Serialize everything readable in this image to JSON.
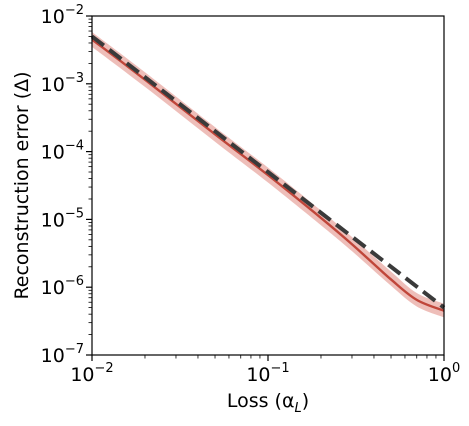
{
  "chart_data": {
    "type": "line",
    "xlabel": "Loss (αL)",
    "ylabel": "Reconstruction error (Δ)",
    "xscale": "log",
    "yscale": "log",
    "xlim": [
      0.01,
      1
    ],
    "ylim": [
      1e-07,
      0.01
    ],
    "x_ticks": [
      {
        "value": 0.01,
        "base": "10",
        "exp": "−2"
      },
      {
        "value": 0.1,
        "base": "10",
        "exp": "−1"
      },
      {
        "value": 1,
        "base": "10",
        "exp": "0"
      }
    ],
    "y_ticks": [
      {
        "value": 1e-07,
        "base": "10",
        "exp": "−7"
      },
      {
        "value": 1e-06,
        "base": "10",
        "exp": "−6"
      },
      {
        "value": 1e-05,
        "base": "10",
        "exp": "−5"
      },
      {
        "value": 0.0001,
        "base": "10",
        "exp": "−4"
      },
      {
        "value": 0.001,
        "base": "10",
        "exp": "−3"
      },
      {
        "value": 0.01,
        "base": "10",
        "exp": "−2"
      }
    ],
    "grid": false,
    "series": [
      {
        "style": "solid",
        "color": "#c0463a",
        "band_color": "#e8a8a2",
        "x": [
          0.01,
          0.02,
          0.05,
          0.1,
          0.2,
          0.3,
          0.5,
          0.7,
          1.0
        ],
        "y": [
          0.0045,
          0.00115,
          0.00018,
          4.5e-05,
          1.05e-05,
          4.3e-06,
          1.3e-06,
          6.5e-07,
          4.5e-07
        ],
        "y_lower": [
          0.0035,
          0.0009,
          0.00014,
          3.5e-05,
          8.2e-06,
          3.4e-06,
          1.05e-06,
          5.2e-07,
          3.6e-07
        ],
        "y_upper": [
          0.0058,
          0.00148,
          0.00023,
          5.8e-05,
          1.35e-05,
          5.5e-06,
          1.7e-06,
          8.2e-07,
          5.7e-07
        ]
      },
      {
        "style": "dashed",
        "color": "#3a3a3a",
        "x": [
          0.01,
          1.0
        ],
        "y": [
          0.005,
          5e-07
        ]
      }
    ]
  }
}
